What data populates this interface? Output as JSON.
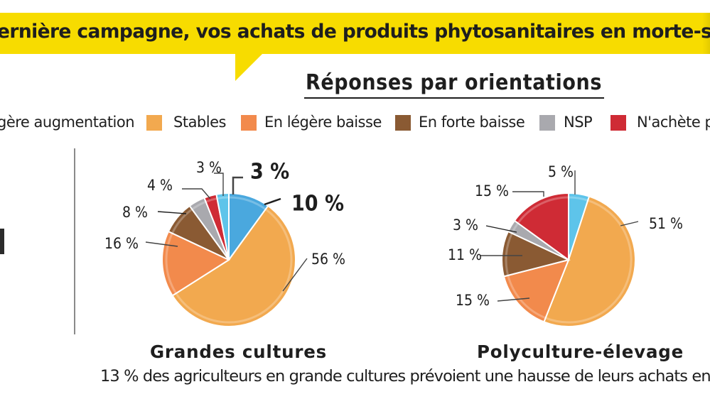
{
  "header": {
    "banner_text": "ernière campagne, vos achats de produits phytosanitaires en morte-sai",
    "banner_color": "#f7dc00"
  },
  "subtitle": "Réponses par orientations",
  "legend": [
    {
      "label": "gère augmentation",
      "color": null
    },
    {
      "label": "Stables",
      "color": "#f2a94f"
    },
    {
      "label": "En légère baisse",
      "color": "#f28a4c"
    },
    {
      "label": "En forte baisse",
      "color": "#8a5a33"
    },
    {
      "label": "NSP",
      "color": "#a9a9ae"
    },
    {
      "label": "N'achète p",
      "color": "#cf2b35"
    }
  ],
  "footnote": "13 % des agriculteurs en grande cultures prévoient une hausse de leurs achats en",
  "chart_data": [
    {
      "type": "pie",
      "title": "Grandes cultures",
      "slices": [
        {
          "label": "10 %",
          "value": 10,
          "color": "#4aa8de"
        },
        {
          "label": "56 %",
          "value": 56,
          "color": "#f2a94f"
        },
        {
          "label": "16 %",
          "value": 16,
          "color": "#f28a4c"
        },
        {
          "label": "8 %",
          "value": 8,
          "color": "#8a5a33"
        },
        {
          "label": "4 %",
          "value": 4,
          "color": "#a9a9ae"
        },
        {
          "label": "3 %",
          "value": 3,
          "color": "#cf2b35"
        },
        {
          "label": "3 %",
          "value": 3,
          "color": "#5ec4ea"
        }
      ]
    },
    {
      "type": "pie",
      "title": "Polyculture-élevage",
      "slices": [
        {
          "label": "5 %",
          "value": 5,
          "color": "#5ec4ea"
        },
        {
          "label": "51 %",
          "value": 51,
          "color": "#f2a94f"
        },
        {
          "label": "15 %",
          "value": 15,
          "color": "#f28a4c"
        },
        {
          "label": "11 %",
          "value": 11,
          "color": "#8a5a33"
        },
        {
          "label": "3 %",
          "value": 3,
          "color": "#a9a9ae"
        },
        {
          "label": "15 %",
          "value": 15,
          "color": "#cf2b35"
        }
      ]
    }
  ]
}
